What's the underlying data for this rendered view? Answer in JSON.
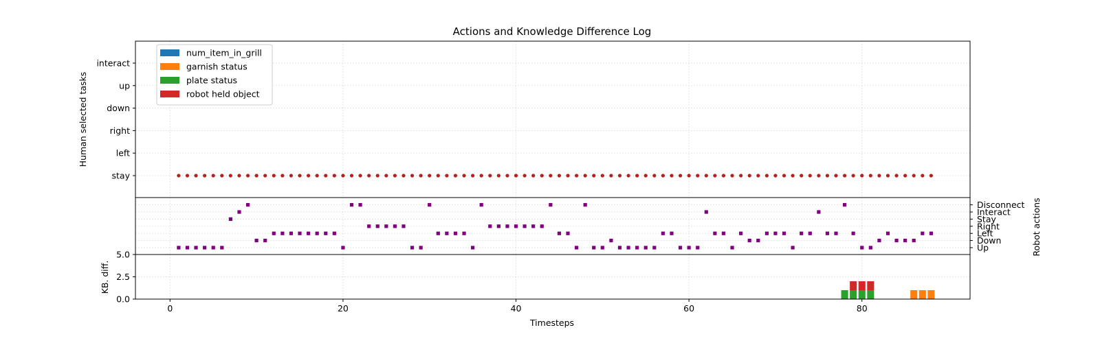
{
  "chart_data": {
    "type": "scatter",
    "title": "Actions and Knowledge Difference Log",
    "xlabel": "Timesteps",
    "xlim": [
      -4,
      92.5
    ],
    "xticks": [
      0,
      20,
      40,
      60,
      80
    ],
    "top_panel": {
      "ylabel": "Human selected tasks",
      "yticklabels": [
        "stay",
        "left",
        "right",
        "down",
        "up",
        "interact"
      ],
      "series": [
        {
          "color": "#b22222",
          "marker": "circle",
          "points": [
            [
              1,
              "stay"
            ],
            [
              2,
              "stay"
            ],
            [
              3,
              "stay"
            ],
            [
              4,
              "stay"
            ],
            [
              5,
              "stay"
            ],
            [
              6,
              "stay"
            ],
            [
              7,
              "stay"
            ],
            [
              8,
              "stay"
            ],
            [
              9,
              "stay"
            ],
            [
              10,
              "stay"
            ],
            [
              11,
              "stay"
            ],
            [
              12,
              "stay"
            ],
            [
              13,
              "stay"
            ],
            [
              14,
              "stay"
            ],
            [
              15,
              "stay"
            ],
            [
              16,
              "stay"
            ],
            [
              17,
              "stay"
            ],
            [
              18,
              "stay"
            ],
            [
              19,
              "stay"
            ],
            [
              20,
              "stay"
            ],
            [
              21,
              "stay"
            ],
            [
              22,
              "stay"
            ],
            [
              23,
              "stay"
            ],
            [
              24,
              "stay"
            ],
            [
              25,
              "stay"
            ],
            [
              26,
              "stay"
            ],
            [
              27,
              "stay"
            ],
            [
              28,
              "stay"
            ],
            [
              29,
              "stay"
            ],
            [
              30,
              "stay"
            ],
            [
              31,
              "stay"
            ],
            [
              32,
              "stay"
            ],
            [
              33,
              "stay"
            ],
            [
              34,
              "stay"
            ],
            [
              35,
              "stay"
            ],
            [
              36,
              "stay"
            ],
            [
              37,
              "stay"
            ],
            [
              38,
              "stay"
            ],
            [
              39,
              "stay"
            ],
            [
              40,
              "stay"
            ],
            [
              41,
              "stay"
            ],
            [
              42,
              "stay"
            ],
            [
              43,
              "stay"
            ],
            [
              44,
              "stay"
            ],
            [
              45,
              "stay"
            ],
            [
              46,
              "stay"
            ],
            [
              47,
              "stay"
            ],
            [
              48,
              "stay"
            ],
            [
              49,
              "stay"
            ],
            [
              50,
              "stay"
            ],
            [
              51,
              "stay"
            ],
            [
              52,
              "stay"
            ],
            [
              53,
              "stay"
            ],
            [
              54,
              "stay"
            ],
            [
              55,
              "stay"
            ],
            [
              56,
              "stay"
            ],
            [
              57,
              "stay"
            ],
            [
              58,
              "stay"
            ],
            [
              59,
              "stay"
            ],
            [
              60,
              "stay"
            ],
            [
              61,
              "stay"
            ],
            [
              62,
              "stay"
            ],
            [
              63,
              "stay"
            ],
            [
              64,
              "stay"
            ],
            [
              65,
              "stay"
            ],
            [
              66,
              "stay"
            ],
            [
              67,
              "stay"
            ],
            [
              68,
              "stay"
            ],
            [
              69,
              "stay"
            ],
            [
              70,
              "stay"
            ],
            [
              71,
              "stay"
            ],
            [
              72,
              "stay"
            ],
            [
              73,
              "stay"
            ],
            [
              74,
              "stay"
            ],
            [
              75,
              "stay"
            ],
            [
              76,
              "stay"
            ],
            [
              77,
              "stay"
            ],
            [
              78,
              "stay"
            ],
            [
              79,
              "stay"
            ],
            [
              80,
              "stay"
            ],
            [
              81,
              "stay"
            ],
            [
              82,
              "stay"
            ],
            [
              83,
              "stay"
            ],
            [
              84,
              "stay"
            ],
            [
              85,
              "stay"
            ],
            [
              86,
              "stay"
            ],
            [
              87,
              "stay"
            ],
            [
              88,
              "stay"
            ]
          ]
        }
      ],
      "legend": {
        "placement": "top-left",
        "entries": [
          {
            "name": "num_item_in_grill",
            "color": "#1f77b4"
          },
          {
            "name": "garnish status",
            "color": "#ff7f0e"
          },
          {
            "name": "plate status",
            "color": "#2ca02c"
          },
          {
            "name": "robot held object",
            "color": "#d62728"
          }
        ]
      },
      "grid": true
    },
    "middle_panel": {
      "ylabel": "Robot actions",
      "yaxis_side": "right",
      "yticklabels": [
        "Up",
        "Down",
        "Left",
        "Right",
        "Stay",
        "Interact",
        "Disconnect"
      ],
      "series": [
        {
          "color": "#800080",
          "marker": "square",
          "points": [
            [
              1,
              "Up"
            ],
            [
              2,
              "Up"
            ],
            [
              3,
              "Up"
            ],
            [
              4,
              "Up"
            ],
            [
              5,
              "Up"
            ],
            [
              6,
              "Up"
            ],
            [
              7,
              "Stay"
            ],
            [
              8,
              "Interact"
            ],
            [
              9,
              "Disconnect"
            ],
            [
              10,
              "Down"
            ],
            [
              11,
              "Down"
            ],
            [
              12,
              "Left"
            ],
            [
              13,
              "Left"
            ],
            [
              14,
              "Left"
            ],
            [
              15,
              "Left"
            ],
            [
              16,
              "Left"
            ],
            [
              17,
              "Left"
            ],
            [
              18,
              "Left"
            ],
            [
              19,
              "Left"
            ],
            [
              20,
              "Up"
            ],
            [
              21,
              "Disconnect"
            ],
            [
              22,
              "Disconnect"
            ],
            [
              23,
              "Right"
            ],
            [
              24,
              "Right"
            ],
            [
              25,
              "Right"
            ],
            [
              26,
              "Right"
            ],
            [
              27,
              "Right"
            ],
            [
              28,
              "Up"
            ],
            [
              29,
              "Up"
            ],
            [
              30,
              "Disconnect"
            ],
            [
              31,
              "Left"
            ],
            [
              32,
              "Left"
            ],
            [
              33,
              "Left"
            ],
            [
              34,
              "Left"
            ],
            [
              35,
              "Up"
            ],
            [
              36,
              "Disconnect"
            ],
            [
              37,
              "Right"
            ],
            [
              38,
              "Right"
            ],
            [
              39,
              "Right"
            ],
            [
              40,
              "Right"
            ],
            [
              41,
              "Right"
            ],
            [
              42,
              "Right"
            ],
            [
              43,
              "Right"
            ],
            [
              44,
              "Disconnect"
            ],
            [
              45,
              "Left"
            ],
            [
              46,
              "Left"
            ],
            [
              47,
              "Up"
            ],
            [
              48,
              "Disconnect"
            ],
            [
              49,
              "Up"
            ],
            [
              50,
              "Up"
            ],
            [
              51,
              "Down"
            ],
            [
              52,
              "Up"
            ],
            [
              53,
              "Up"
            ],
            [
              54,
              "Up"
            ],
            [
              55,
              "Up"
            ],
            [
              56,
              "Up"
            ],
            [
              57,
              "Left"
            ],
            [
              58,
              "Left"
            ],
            [
              59,
              "Up"
            ],
            [
              60,
              "Up"
            ],
            [
              61,
              "Up"
            ],
            [
              62,
              "Interact"
            ],
            [
              63,
              "Left"
            ],
            [
              64,
              "Left"
            ],
            [
              65,
              "Up"
            ],
            [
              66,
              "Left"
            ],
            [
              67,
              "Down"
            ],
            [
              68,
              "Down"
            ],
            [
              69,
              "Left"
            ],
            [
              70,
              "Left"
            ],
            [
              71,
              "Left"
            ],
            [
              72,
              "Up"
            ],
            [
              73,
              "Left"
            ],
            [
              74,
              "Left"
            ],
            [
              75,
              "Interact"
            ],
            [
              76,
              "Left"
            ],
            [
              77,
              "Left"
            ],
            [
              78,
              "Disconnect"
            ],
            [
              79,
              "Left"
            ],
            [
              80,
              "Up"
            ],
            [
              81,
              "Up"
            ],
            [
              82,
              "Down"
            ],
            [
              83,
              "Left"
            ],
            [
              84,
              "Down"
            ],
            [
              85,
              "Down"
            ],
            [
              86,
              "Down"
            ],
            [
              87,
              "Left"
            ],
            [
              88,
              "Left"
            ]
          ]
        }
      ],
      "grid": true
    },
    "bottom_panel": {
      "type": "bar",
      "stacked": true,
      "ylabel": "KB. diff.",
      "ylim": [
        0,
        5
      ],
      "yticks": [
        0.0,
        2.5,
        5.0
      ],
      "series": [
        {
          "name": "num_item_in_grill",
          "color": "#1f77b4",
          "values": []
        },
        {
          "name": "garnish status",
          "color": "#ff7f0e",
          "values": [
            [
              86,
              1
            ],
            [
              87,
              1
            ],
            [
              88,
              1
            ]
          ]
        },
        {
          "name": "plate status",
          "color": "#2ca02c",
          "values": [
            [
              78,
              1
            ],
            [
              79,
              1
            ],
            [
              80,
              1
            ],
            [
              81,
              1
            ]
          ]
        },
        {
          "name": "robot held object",
          "color": "#d62728",
          "values": [
            [
              79,
              1
            ],
            [
              80,
              1
            ],
            [
              81,
              1
            ]
          ]
        }
      ],
      "grid": true
    }
  }
}
